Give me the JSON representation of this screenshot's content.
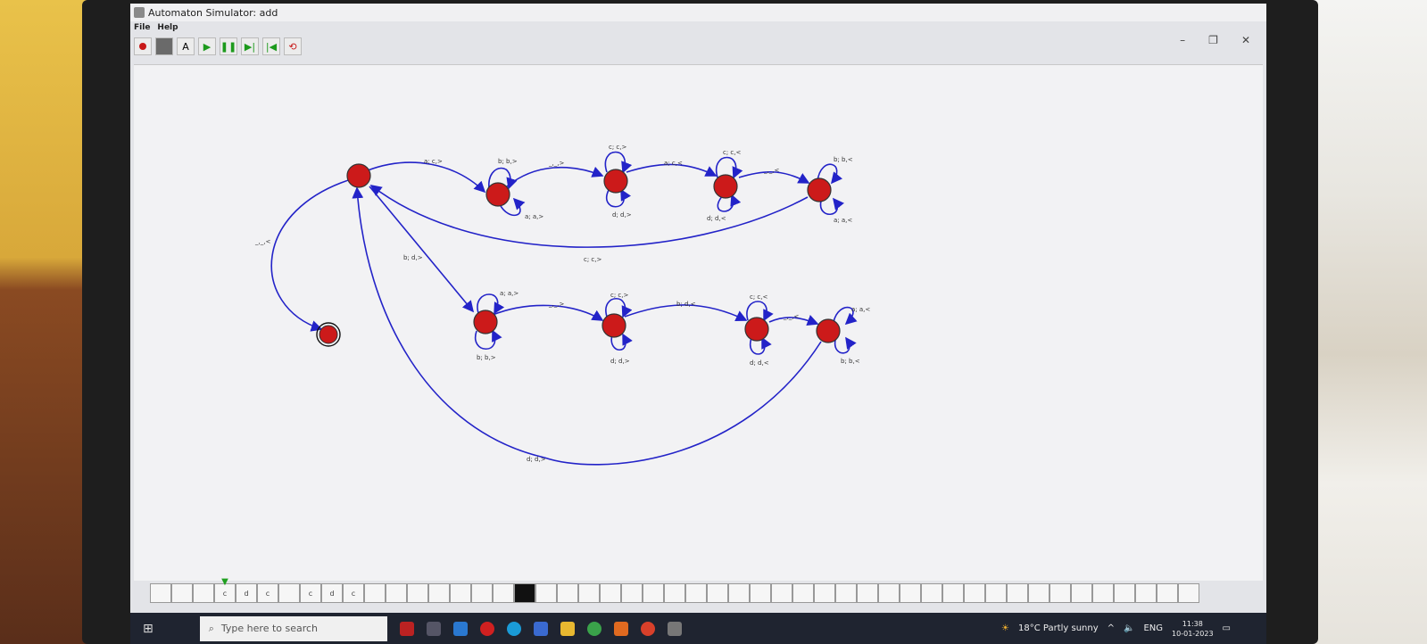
{
  "window": {
    "title": "Automaton Simulator: add"
  },
  "menu": [
    "File",
    "Help"
  ],
  "toolbar": {
    "record": "record-icon",
    "stop": "stop-icon",
    "text_tool": "A",
    "play": "play-icon",
    "pause": "pause-icon",
    "step_forward": "step-forward-icon",
    "step_back": "step-back-icon",
    "reset": "reset-icon"
  },
  "transitions": {
    "t_start_final": "_,_,<",
    "t_0_1": "a; c,>",
    "t_1_loop_top": "b; b,>",
    "t_1_loop_bottom": "a; a,>",
    "t_1_2": "_,_,>",
    "t_2_loop_top": "c; c,>",
    "t_2_loop_bottom": "d; d,>",
    "t_2_3": "a; c,<",
    "t_3_loop_top": "c; c,<",
    "t_3_loop_bottom": "d; d,<",
    "t_3_4": "_,_,<",
    "t_4_loop_top": "b; b,<",
    "t_4_loop_bottom": "a; a,<",
    "t_4_0": "c; c,>",
    "t_0_5": "b; d,>",
    "t_5_loop_top": "a; a,>",
    "t_5_loop_bottom": "b; b,>",
    "t_5_6": "_,_,>",
    "t_6_loop_top": "c; c,>",
    "t_6_loop_bottom": "d; d,>",
    "t_6_7": "b; d,<",
    "t_7_loop_top": "c; c,<",
    "t_7_loop_bottom": "d; d,<",
    "t_7_8": "_,_,<",
    "t_8_loop_top": "a; a,<",
    "t_8_loop_bottom": "b; b,<",
    "t_8_0": "d; d,>"
  },
  "tape": [
    "",
    "",
    "",
    "c",
    "d",
    "c",
    "",
    "c",
    "d",
    "c",
    "",
    "",
    "",
    "",
    "",
    "",
    "",
    "",
    "",
    "",
    "",
    "",
    "",
    "",
    "",
    "",
    "",
    "",
    "",
    "",
    "",
    "",
    "",
    "",
    "",
    "",
    "",
    "",
    "",
    "",
    "",
    "",
    "",
    "",
    "",
    "",
    "",
    "",
    ""
  ],
  "tape_head_cell": 3,
  "taskbar": {
    "search_placeholder": "Type here to search",
    "weather": "18°C  Partly sunny",
    "lang": "ENG",
    "time": "11:38",
    "date": "10-01-2023"
  },
  "colors": {
    "state": "#cc1a1a",
    "edge": "#2323c8",
    "tape_dark": "#111111"
  }
}
